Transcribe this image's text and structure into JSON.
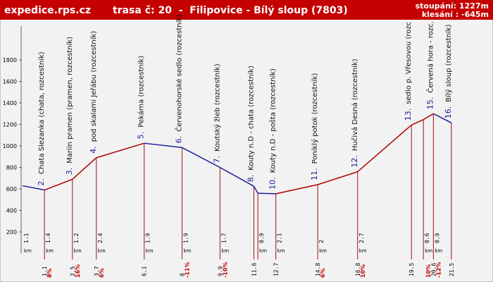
{
  "header": {
    "site": "expedice.rps.cz",
    "route": "trasa č: 20  -  Filipovice - Bílý sloup (7803)",
    "ascent": "stoupání: 1227m",
    "descent": "klesání : -645m"
  },
  "chart_data": {
    "type": "profile",
    "unit": "km",
    "up_color": "#b00000",
    "down_color": "#1c1c9c",
    "stem_color": "#a01010",
    "xlim": [
      0,
      23.2
    ],
    "ylim": [
      0,
      2100
    ],
    "yticks": [
      200,
      400,
      600,
      800,
      1000,
      1200,
      1400,
      1600,
      1800
    ],
    "points": [
      {
        "km": 0,
        "elev": 630,
        "seg": 1.1
      },
      {
        "km": 1.1,
        "elev": 590,
        "num": "2.",
        "name": "Chata Slezanka (chata, rozcestník)",
        "seg": 1.4,
        "grade": "8%"
      },
      {
        "km": 2.5,
        "elev": 690,
        "num": "3.",
        "name": "Mariin pramen (pramen, rozcestník)",
        "seg": 1.2,
        "grade": "16%"
      },
      {
        "km": 3.7,
        "elev": 890,
        "num": "4.",
        "name": "pod skalami Jeřábu (rozcestník)",
        "seg": 2.4,
        "grade": "6%"
      },
      {
        "km": 6.1,
        "elev": 1025,
        "num": "5.",
        "name": "Pekárna (rozcestník)",
        "seg": 1.9
      },
      {
        "km": 8,
        "elev": 985,
        "num": "6.",
        "name": "Červenohorské sedlo (rozcestník)",
        "seg": 1.9,
        "grade": "-11%"
      },
      {
        "km": 9.9,
        "elev": 800,
        "num": "7.",
        "name": "Koutský žleb (rozcestník)",
        "seg": 1.7,
        "grade": "-10%"
      },
      {
        "km": 11.6,
        "elev": 625,
        "num": "8.",
        "name": "Kouty n.D - chata (rozcestník)"
      },
      {
        "km": 11.8,
        "elev": 560,
        "seg": 0.9
      },
      {
        "km": 12.7,
        "elev": 555,
        "num": "10.",
        "name": "Kouty n.D - pošta (rozcestník)",
        "seg": 2.1
      },
      {
        "km": 14.8,
        "elev": 640,
        "num": "11.",
        "name": "Poniklý potok (rozcestník)",
        "seg": 2,
        "grade": "6%"
      },
      {
        "km": 16.8,
        "elev": 760,
        "num": "12.",
        "name": "Hučivá Desná (rozcestník)",
        "seg": 2.7,
        "grade": "10%"
      },
      {
        "km": 19.5,
        "elev": 1195,
        "num": "13.",
        "name": "sedlo p. Vřesovou (rozc"
      },
      {
        "km": 20.1,
        "elev": 1245,
        "seg": 0.6,
        "grade": "10%"
      },
      {
        "km": 20.6,
        "elev": 1300,
        "num": "15.",
        "name": "Červená hora - rozc.",
        "seg": 0.9,
        "grade": "-12%"
      },
      {
        "km": 21.5,
        "elev": 1215,
        "num": "16.",
        "name": "Bílý sloup (rozcestník)"
      }
    ]
  }
}
